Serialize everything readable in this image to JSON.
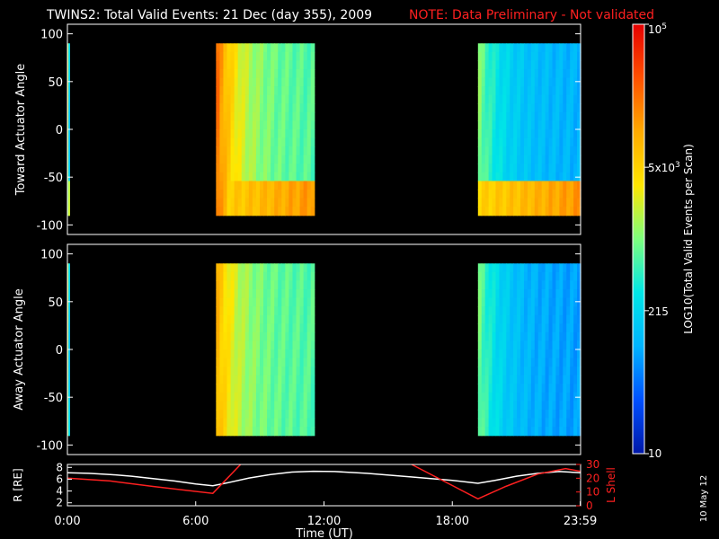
{
  "title": "TWINS2: Total Valid Events: 21 Dec (day 355), 2009",
  "note": "NOTE: Data Preliminary - Not validated",
  "date_stamp": "10 May 12",
  "colors": {
    "background": "#000000",
    "note": "#ff2020",
    "r_line": "#ffffff",
    "lshell_line": "#ff2020",
    "scale": [
      "#0018a8",
      "#0050ff",
      "#00b4ff",
      "#00e6e6",
      "#7dff7d",
      "#ffe600",
      "#ffaa00",
      "#ff5000",
      "#e60000"
    ]
  },
  "chart_data": [
    {
      "type": "heatmap",
      "name": "toward",
      "ylabel": "Toward Actuator Angle",
      "yticks": [
        "100",
        "50",
        "0",
        "-50",
        "-100"
      ],
      "ylim": [
        -110,
        110
      ],
      "data_range": [
        -90,
        90
      ],
      "xlim": [
        0,
        24
      ],
      "blocks": [
        {
          "t": [
            0.0,
            0.1
          ],
          "base": 0.3,
          "low": 0.55,
          "edge_hi": 0.55
        },
        {
          "t": [
            6.95,
            11.55
          ],
          "base": 0.45,
          "low": 0.78,
          "edge_hi": 0.82
        },
        {
          "t": [
            19.2,
            24.0
          ],
          "base": 0.25,
          "low": 0.78,
          "edge_hi": 0.5
        }
      ]
    },
    {
      "type": "heatmap",
      "name": "away",
      "ylabel": "Away Actuator Angle",
      "yticks": [
        "100",
        "50",
        "0",
        "-50",
        "-100"
      ],
      "ylim": [
        -110,
        110
      ],
      "data_range": [
        -90,
        90
      ],
      "xlim": [
        0,
        24
      ],
      "blocks": [
        {
          "t": [
            0.0,
            0.1
          ],
          "base": 0.3,
          "low": 0.3,
          "edge_hi": 0.55
        },
        {
          "t": [
            6.95,
            11.55
          ],
          "base": 0.45,
          "low": 0.45,
          "edge_hi": 0.72
        },
        {
          "t": [
            19.2,
            24.0
          ],
          "base": 0.22,
          "low": 0.22,
          "edge_hi": 0.48
        }
      ]
    },
    {
      "type": "line",
      "name": "orbit",
      "ylabel": "R [RE]",
      "ylabel_right": "L Shell",
      "xlabel": "Time (UT)",
      "xticks": [
        "0:00",
        "6:00",
        "12:00",
        "18:00",
        "23:59"
      ],
      "yticks": [
        "2",
        "4",
        "6",
        "8"
      ],
      "yticks_right": [
        "0",
        "10",
        "20",
        "30"
      ],
      "ylim": [
        1.5,
        8.5
      ],
      "ylim_right": [
        0,
        30
      ],
      "xlim": [
        0,
        24
      ],
      "series": [
        {
          "axis": "left",
          "color": "white",
          "x": [
            0,
            1,
            2,
            3,
            4,
            5,
            6,
            6.8,
            7.5,
            8.5,
            9.5,
            10.5,
            11.5,
            12.5,
            14,
            16,
            18,
            19.2,
            20,
            21,
            22,
            23,
            24
          ],
          "y": [
            7.1,
            7.0,
            6.8,
            6.5,
            6.1,
            5.7,
            5.2,
            4.9,
            5.4,
            6.2,
            6.8,
            7.2,
            7.35,
            7.3,
            7.0,
            6.4,
            5.8,
            5.3,
            5.8,
            6.5,
            7.0,
            7.3,
            7.1
          ]
        },
        {
          "axis": "right",
          "color": "red",
          "x": [
            0,
            2,
            4,
            6.8,
            8.1,
            null,
            16.1,
            19.2,
            20.5,
            22,
            23.3,
            24
          ],
          "y": [
            20,
            18,
            14,
            9,
            30,
            null,
            30,
            5,
            14,
            23,
            27,
            25
          ]
        }
      ]
    },
    {
      "type": "colorbar",
      "name": "scale",
      "label": "LOG10(Total Valid Events per Scan)",
      "ticks": [
        {
          "label": "10",
          "value": 0.0
        },
        {
          "label": "215",
          "value": 0.333
        },
        {
          "label": "5x103",
          "value": 0.667
        },
        {
          "label": "105",
          "value": 1.0
        }
      ]
    }
  ]
}
